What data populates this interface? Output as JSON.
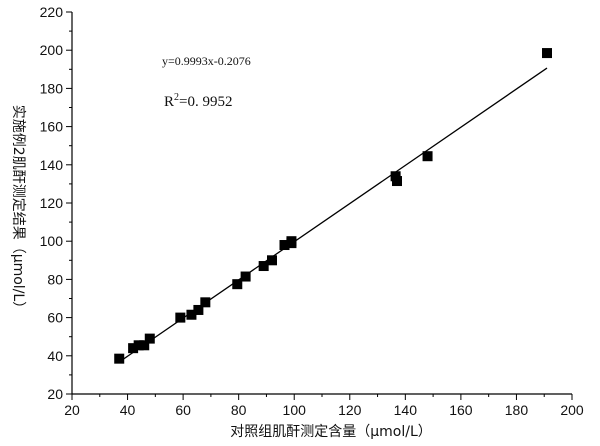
{
  "chart_data": {
    "type": "scatter",
    "title": "",
    "xlabel": "对照组肌酐测定含量（μmol/L）",
    "ylabel": "实施例2肌酐测定结果（μmol/L）",
    "xlim": [
      20,
      200
    ],
    "ylim": [
      20,
      220
    ],
    "xticks": [
      20,
      40,
      60,
      80,
      100,
      120,
      140,
      160,
      180,
      200
    ],
    "yticks": [
      20,
      40,
      60,
      80,
      100,
      120,
      140,
      160,
      180,
      200,
      220
    ],
    "grid": false,
    "legend": "none",
    "points": [
      {
        "x": 37,
        "y": 38.5
      },
      {
        "x": 42,
        "y": 44
      },
      {
        "x": 44,
        "y": 45.5
      },
      {
        "x": 46,
        "y": 45.5
      },
      {
        "x": 48,
        "y": 49
      },
      {
        "x": 59,
        "y": 60
      },
      {
        "x": 63,
        "y": 61.5
      },
      {
        "x": 65.5,
        "y": 64
      },
      {
        "x": 68,
        "y": 68
      },
      {
        "x": 79.5,
        "y": 77.5
      },
      {
        "x": 82.5,
        "y": 81.5
      },
      {
        "x": 89,
        "y": 87
      },
      {
        "x": 92,
        "y": 90
      },
      {
        "x": 96.5,
        "y": 98
      },
      {
        "x": 99,
        "y": 99
      },
      {
        "x": 99,
        "y": 100
      },
      {
        "x": 136.5,
        "y": 134
      },
      {
        "x": 137,
        "y": 131.5
      },
      {
        "x": 148,
        "y": 144.5
      },
      {
        "x": 191,
        "y": 198.5
      }
    ],
    "fit_line": {
      "slope": 0.9993,
      "intercept": -0.2076,
      "x_range": [
        37,
        191
      ]
    },
    "annotations": {
      "equation": "y=0.9993x-0.2076",
      "r2_prefix": "R",
      "r2_sup": "2",
      "r2_value": "=0. 9952"
    },
    "colors": {
      "marker": "#000000",
      "line": "#000000",
      "axis": "#000000"
    }
  }
}
